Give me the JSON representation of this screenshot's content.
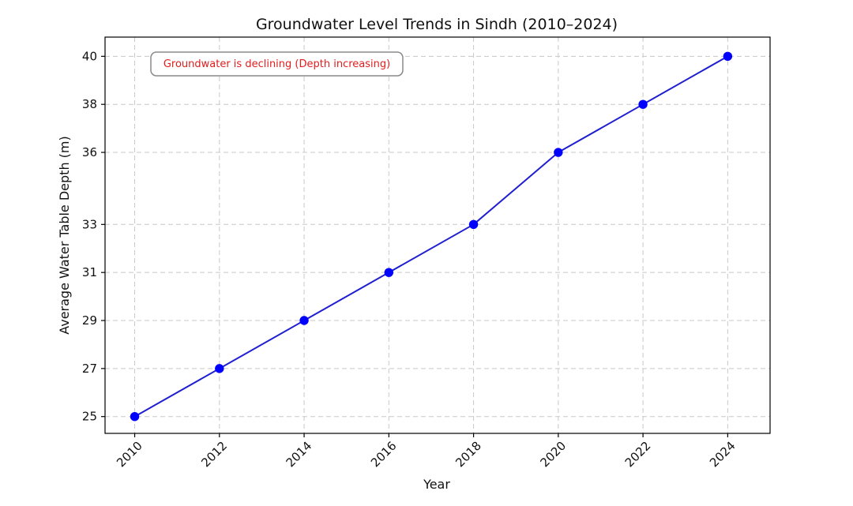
{
  "chart_data": {
    "type": "line",
    "title": "Groundwater Level Trends in Sindh (2010–2024)",
    "xlabel": "Year",
    "ylabel": "Average Water Table Depth (m)",
    "x": [
      2010,
      2012,
      2014,
      2016,
      2018,
      2020,
      2022,
      2024
    ],
    "series": [
      {
        "name": "Average Water Table Depth",
        "values": [
          25,
          27,
          29,
          31,
          33,
          36,
          38,
          40
        ],
        "color": "#1f1fd1"
      }
    ],
    "xlim": [
      2009.3,
      2025.0
    ],
    "ylim": [
      24.3,
      40.8
    ],
    "yticks": [
      25,
      27,
      29,
      31,
      33,
      36,
      38,
      40
    ],
    "xticks": [
      2010,
      2012,
      2014,
      2016,
      2018,
      2020,
      2022,
      2024
    ],
    "grid": true,
    "annotation": {
      "text": "Groundwater is declining (Depth increasing)",
      "color": "#e11d1d"
    }
  },
  "colors": {
    "grid": "#c8c8c8",
    "axes": "#000000",
    "marker": "#0000ff",
    "line": "#1f1fd1",
    "annotation_box_border": "#8a8a8a"
  }
}
